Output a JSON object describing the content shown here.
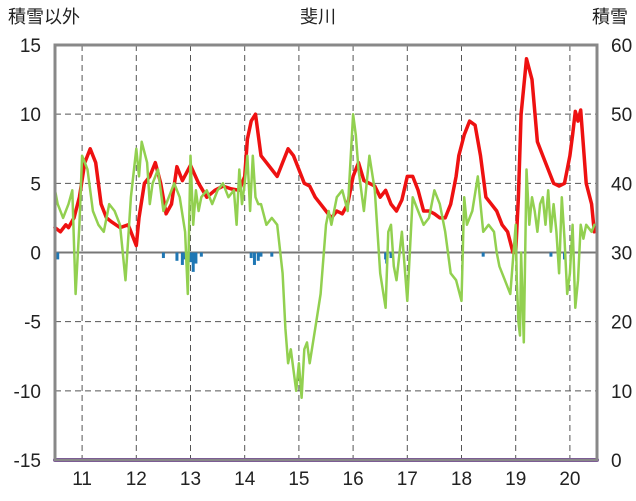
{
  "chart_data": {
    "type": "line",
    "title": "斐川",
    "left_axis_label": "積雪以外",
    "right_axis_label": "積雪",
    "left_ylim": [
      -15,
      15
    ],
    "left_ticks": [
      15,
      10,
      5,
      0,
      -5,
      -10,
      -15
    ],
    "left_tick_labels": [
      "15",
      "10",
      "5",
      "0",
      "-5",
      "-10",
      "-15"
    ],
    "right_ylim": [
      0,
      60
    ],
    "right_ticks": [
      60,
      50,
      40,
      30,
      20,
      10,
      0
    ],
    "right_tick_labels": [
      "60",
      "50",
      "40",
      "30",
      "20",
      "10",
      "0"
    ],
    "xlim": [
      10.5,
      20.5
    ],
    "x_ticks": [
      11,
      12,
      13,
      14,
      15,
      16,
      17,
      18,
      19,
      20
    ],
    "x_tick_labels": [
      "11",
      "12",
      "13",
      "14",
      "15",
      "16",
      "17",
      "18",
      "19",
      "20"
    ],
    "grid": true,
    "colors": {
      "red": "#ee1111",
      "green": "#92d050",
      "blue": "#1f77b4",
      "baseline": "#7030a0",
      "frame": "#888888",
      "zero": "#777777",
      "grid": "#555555"
    },
    "series": [
      {
        "axis": "left",
        "color": "#ee1111",
        "x": [
          10.5,
          10.6,
          10.7,
          10.75,
          10.85,
          10.95,
          11.05,
          11.15,
          11.25,
          11.35,
          11.45,
          11.55,
          11.7,
          11.85,
          12.0,
          12.05,
          12.15,
          12.25,
          12.35,
          12.45,
          12.55,
          12.65,
          12.75,
          12.85,
          13.0,
          13.15,
          13.3,
          13.45,
          13.6,
          13.75,
          13.9,
          14.0,
          14.05,
          14.12,
          14.2,
          14.3,
          14.4,
          14.5,
          14.6,
          14.7,
          14.8,
          14.9,
          15.0,
          15.1,
          15.2,
          15.3,
          15.4,
          15.5,
          15.6,
          15.7,
          15.8,
          15.9,
          16.0,
          16.1,
          16.2,
          16.3,
          16.4,
          16.5,
          16.6,
          16.7,
          16.8,
          16.9,
          17.0,
          17.1,
          17.2,
          17.3,
          17.4,
          17.5,
          17.6,
          17.7,
          17.8,
          17.9,
          17.95,
          18.05,
          18.15,
          18.25,
          18.35,
          18.45,
          18.55,
          18.65,
          18.75,
          18.85,
          18.95,
          19.0,
          19.05,
          19.1,
          19.2,
          19.3,
          19.4,
          19.5,
          19.6,
          19.7,
          19.8,
          19.9,
          20.0,
          20.05,
          20.1,
          20.15,
          20.2,
          20.3,
          20.4,
          20.45
        ],
        "values": [
          1.8,
          1.5,
          2.0,
          1.8,
          2.5,
          4.0,
          6.5,
          7.5,
          6.5,
          3.5,
          2.5,
          2.2,
          1.8,
          2.0,
          0.5,
          2.5,
          5.0,
          5.5,
          6.5,
          5.0,
          2.8,
          3.5,
          6.2,
          5.2,
          6.3,
          5.0,
          4.0,
          4.5,
          4.8,
          4.6,
          4.5,
          5.5,
          8.2,
          9.5,
          10.0,
          7.0,
          6.5,
          6.0,
          5.5,
          6.5,
          7.5,
          7.0,
          6.0,
          5.0,
          4.8,
          4.0,
          3.5,
          3.0,
          2.5,
          3.0,
          2.8,
          3.5,
          5.5,
          6.5,
          5.2,
          5.0,
          4.8,
          4.0,
          4.5,
          3.5,
          3.0,
          3.8,
          5.5,
          5.5,
          4.5,
          3.0,
          3.0,
          2.8,
          2.5,
          2.5,
          3.5,
          5.5,
          7.0,
          8.5,
          9.5,
          9.2,
          7.0,
          4.0,
          3.5,
          3.0,
          2.0,
          1.5,
          0.0,
          0.0,
          4.0,
          10.0,
          14.0,
          12.5,
          8.0,
          7.0,
          6.0,
          5.0,
          4.8,
          5.0,
          7.0,
          8.5,
          10.2,
          9.5,
          10.3,
          5.0,
          3.5,
          1.5
        ]
      },
      {
        "axis": "left",
        "color": "#92d050",
        "x": [
          10.5,
          10.55,
          10.65,
          10.75,
          10.82,
          10.88,
          10.95,
          11.0,
          11.1,
          11.2,
          11.3,
          11.4,
          11.5,
          11.6,
          11.7,
          11.8,
          11.9,
          12.0,
          12.05,
          12.1,
          12.2,
          12.25,
          12.3,
          12.4,
          12.45,
          12.5,
          12.6,
          12.7,
          12.8,
          12.9,
          12.95,
          13.0,
          13.05,
          13.1,
          13.15,
          13.2,
          13.3,
          13.4,
          13.5,
          13.6,
          13.7,
          13.8,
          13.85,
          13.9,
          13.95,
          14.0,
          14.05,
          14.1,
          14.15,
          14.2,
          14.25,
          14.3,
          14.4,
          14.5,
          14.6,
          14.7,
          14.75,
          14.8,
          14.85,
          14.9,
          14.95,
          15.0,
          15.05,
          15.1,
          15.15,
          15.2,
          15.3,
          15.4,
          15.5,
          15.55,
          15.6,
          15.65,
          15.7,
          15.8,
          15.9,
          16.0,
          16.05,
          16.1,
          16.2,
          16.3,
          16.4,
          16.5,
          16.6,
          16.65,
          16.7,
          16.75,
          16.8,
          16.9,
          17.0,
          17.1,
          17.2,
          17.3,
          17.4,
          17.5,
          17.6,
          17.7,
          17.8,
          17.9,
          18.0,
          18.05,
          18.1,
          18.2,
          18.3,
          18.4,
          18.5,
          18.6,
          18.65,
          18.7,
          18.8,
          18.9,
          19.0,
          19.02,
          19.05,
          19.08,
          19.1,
          19.15,
          19.2,
          19.25,
          19.3,
          19.35,
          19.4,
          19.45,
          19.5,
          19.55,
          19.6,
          19.65,
          19.7,
          19.75,
          19.8,
          19.85,
          19.9,
          19.95,
          20.0,
          20.05,
          20.1,
          20.15,
          20.2,
          20.25,
          20.3,
          20.4,
          20.45
        ],
        "values": [
          4.5,
          3.5,
          2.5,
          3.5,
          4.5,
          -3.0,
          2.0,
          7.0,
          6.0,
          3.0,
          2.0,
          1.5,
          3.5,
          3.0,
          2.0,
          -2.0,
          4.0,
          7.5,
          5.5,
          8.0,
          6.5,
          3.5,
          5.0,
          6.0,
          4.5,
          3.0,
          4.0,
          5.0,
          4.0,
          1.5,
          -3.0,
          7.0,
          2.0,
          4.5,
          3.0,
          4.0,
          4.5,
          3.5,
          4.5,
          5.0,
          4.0,
          4.5,
          2.0,
          6.0,
          3.5,
          5.0,
          7.0,
          3.0,
          7.0,
          4.0,
          3.5,
          3.5,
          2.0,
          2.5,
          2.0,
          -1.5,
          -5.5,
          -8.0,
          -7.0,
          -8.5,
          -10.0,
          -8.0,
          -10.5,
          -7.0,
          -6.5,
          -8.0,
          -5.5,
          -3.0,
          2.0,
          3.0,
          2.0,
          3.0,
          4.0,
          4.5,
          3.0,
          10.0,
          8.5,
          6.0,
          3.0,
          7.0,
          4.5,
          -1.5,
          -4.0,
          1.5,
          2.0,
          -1.0,
          -2.0,
          1.5,
          -3.5,
          4.0,
          3.0,
          2.0,
          2.5,
          4.5,
          3.5,
          1.5,
          -1.5,
          -2.0,
          -3.5,
          4.0,
          2.0,
          3.0,
          5.5,
          1.5,
          2.0,
          1.5,
          0.0,
          -1.0,
          -2.0,
          -3.0,
          2.0,
          -2.0,
          -5.0,
          -6.0,
          0.0,
          -6.5,
          6.0,
          2.0,
          4.0,
          3.0,
          1.5,
          3.5,
          4.0,
          2.0,
          4.5,
          1.5,
          3.5,
          1.5,
          -1.5,
          4.0,
          1.0,
          -3.0,
          -1.5,
          2.0,
          -4.0,
          -2.0,
          2.0,
          1.0,
          2.0,
          1.5,
          2.0
        ]
      },
      {
        "axis": "left",
        "type": "bar",
        "color": "#1f77b4",
        "x": [
          10.55,
          12.5,
          12.75,
          12.85,
          12.9,
          13.0,
          13.05,
          13.1,
          13.2,
          14.12,
          14.18,
          14.25,
          14.3,
          14.5,
          16.6,
          16.62,
          16.7,
          18.4,
          19.65,
          19.8,
          19.9
        ],
        "values": [
          -0.5,
          -0.4,
          -0.6,
          -0.9,
          -0.5,
          -0.7,
          -1.4,
          -0.8,
          -0.3,
          -0.4,
          -0.9,
          -0.6,
          -0.3,
          -0.3,
          -0.5,
          -0.8,
          -0.4,
          -0.3,
          -0.3,
          -0.3,
          -0.5
        ]
      },
      {
        "axis": "right",
        "color": "#7030a0",
        "x": [
          10.5,
          20.5
        ],
        "values": [
          0,
          0
        ]
      }
    ]
  }
}
